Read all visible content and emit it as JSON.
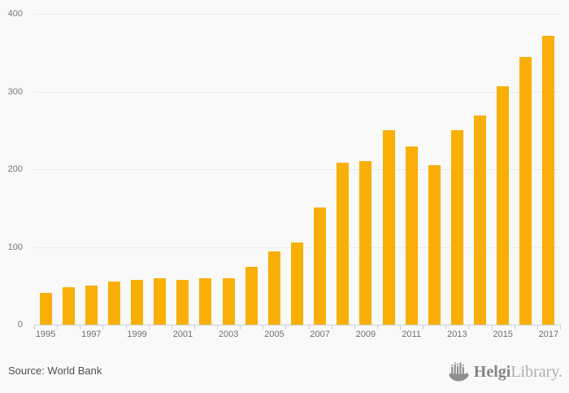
{
  "chart_data": {
    "type": "bar",
    "categories": [
      1995,
      1996,
      1997,
      1998,
      1999,
      2000,
      2001,
      2002,
      2003,
      2004,
      2005,
      2006,
      2007,
      2008,
      2009,
      2010,
      2011,
      2012,
      2013,
      2014,
      2015,
      2016,
      2017
    ],
    "values": [
      41,
      48,
      50,
      55,
      58,
      60,
      58,
      60,
      60,
      74,
      94,
      106,
      151,
      208,
      210,
      250,
      229,
      205,
      250,
      269,
      307,
      344,
      372
    ],
    "title": "",
    "xlabel": "",
    "ylabel": "",
    "ylim": [
      0,
      400
    ],
    "y_ticks": [
      0,
      100,
      200,
      300,
      400
    ],
    "x_tick_labels": [
      "1995",
      "1997",
      "1999",
      "2001",
      "2003",
      "2005",
      "2007",
      "2009",
      "2011",
      "2013",
      "2015",
      "2017"
    ],
    "x_label_every": 2,
    "grid": true,
    "legend": "none",
    "bar_color": "#F9AF05",
    "gridline_color": "#eaeaea",
    "axis_color": "#c8cedf",
    "tick_label_color": "#6f6f6f",
    "background_color": "#f9f9f9"
  },
  "footer": {
    "source_label": "Source: World Bank",
    "logo": {
      "brand_bold": "Helgi",
      "brand_light": "Library.",
      "icon": "viking-ship-icon"
    }
  }
}
